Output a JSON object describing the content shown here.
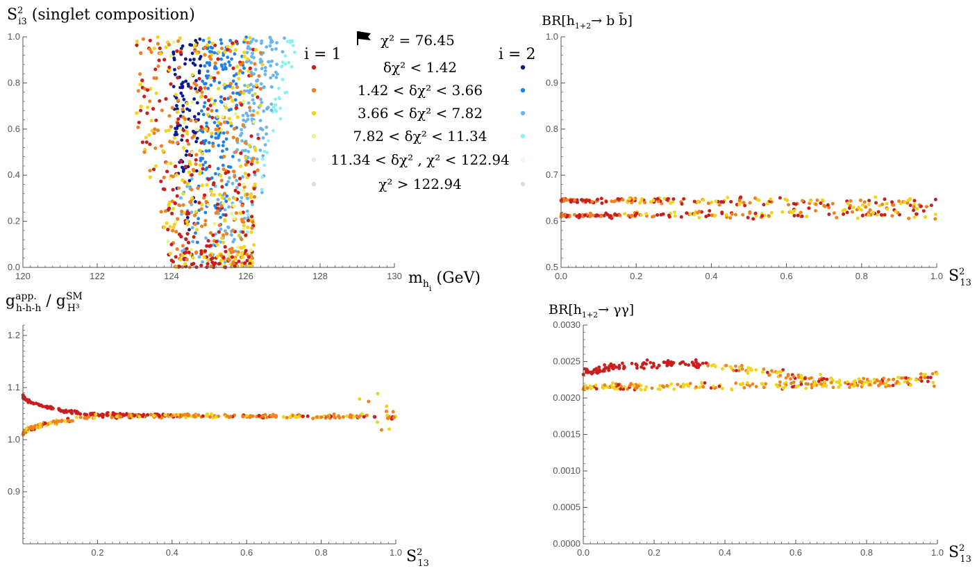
{
  "colors": {
    "i1": [
      "#c81e1e",
      "#f08020",
      "#f2d51a",
      "#eaf28a",
      "#daf5d2",
      "#dddddd"
    ],
    "i2": [
      "#0b1a8c",
      "#1f80e8",
      "#6ab4f0",
      "#8df0f4",
      "#e0f8f8",
      "#dddddd"
    ],
    "axis": "#555555"
  },
  "legend": {
    "flag_icon": "flag-icon",
    "best_fit": "χ² = 76.45",
    "col_i1": "i = 1",
    "col_i2": "i = 2",
    "rows": [
      "δχ² < 1.42",
      "1.42 <  δχ²  <  3.66",
      "3.66 <  δχ²  <  7.82",
      "7.82 <  δχ²  < 11.34",
      "11.34 <  δχ² , χ² < 122.94",
      "χ² > 122.94"
    ]
  },
  "chart_data": [
    {
      "type": "scatter",
      "title": "S²i3  (singlet composition)",
      "xlabel": "m_hi (GeV)",
      "ylabel": "S²i3",
      "xlim": [
        120,
        130
      ],
      "ylim": [
        0,
        1
      ],
      "xticks": [
        "120",
        "122",
        "124",
        "126",
        "128",
        "130"
      ],
      "yticks": [
        "0.0",
        "0.2",
        "0.4",
        "0.6",
        "0.8",
        "1.0"
      ],
      "series": [
        {
          "name": "i = 1",
          "region": {
            "x_range": [
              123,
              126.6
            ],
            "y_range": [
              0,
              1
            ]
          }
        },
        {
          "name": "i = 2",
          "region": {
            "x_range": [
              123.8,
              127.5
            ],
            "y_range": [
              0,
              1
            ]
          }
        }
      ]
    },
    {
      "type": "scatter",
      "title": "BR[h1+2 → b b̄]",
      "xlabel": "S²13",
      "xlim": [
        0,
        1
      ],
      "ylim": [
        0.5,
        1.0
      ],
      "xticks": [
        "0.0",
        "0.2",
        "0.4",
        "0.6",
        "0.8",
        "1.0"
      ],
      "yticks": [
        "0.5",
        "0.6",
        "0.7",
        "0.8",
        "0.9",
        "1.0"
      ],
      "band": {
        "y_upper": 0.64,
        "y_lower": 0.615,
        "x_range": [
          0,
          1
        ]
      }
    },
    {
      "type": "scatter",
      "title": "g app. h-h-h / g SM H³",
      "xlabel": "S²13",
      "xlim": [
        0,
        1
      ],
      "ylim": [
        0.8,
        1.22
      ],
      "xticks": [
        "0.2",
        "0.4",
        "0.6",
        "0.8",
        "1.0"
      ],
      "yticks": [
        "0.9",
        "1.0",
        "1.1",
        "1.2"
      ],
      "band": {
        "y_upper": 1.06,
        "y_lower": 1.02,
        "x_range": [
          0,
          1
        ]
      }
    },
    {
      "type": "scatter",
      "title": "BR[h1+2 → γγ]",
      "xlabel": "S²13",
      "xlim": [
        0,
        1
      ],
      "ylim": [
        0,
        0.003
      ],
      "xticks": [
        "0.0",
        "0.2",
        "0.4",
        "0.6",
        "0.8",
        "1.0"
      ],
      "yticks": [
        "0.0000",
        "0.0005",
        "0.0010",
        "0.0015",
        "0.0020",
        "0.0025",
        "0.0030"
      ],
      "band": {
        "y_upper": 0.0024,
        "y_lower": 0.0021,
        "x_range": [
          0,
          1
        ]
      }
    }
  ]
}
